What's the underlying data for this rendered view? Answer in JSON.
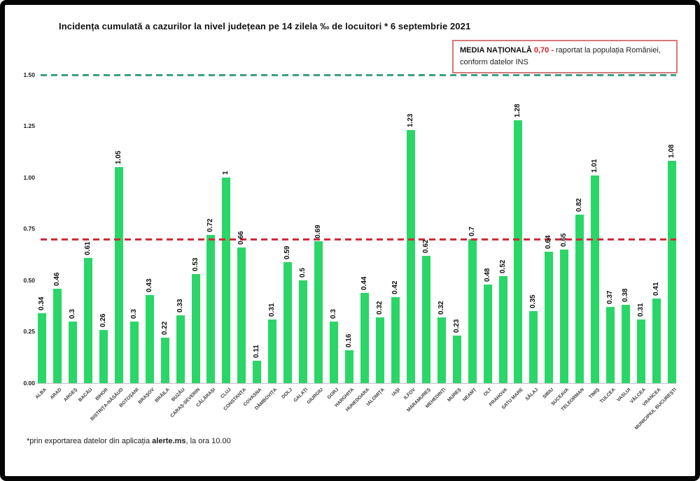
{
  "page": {
    "date_shown": "6 septembrie 2021"
  },
  "legend": {
    "label": "MEDIA NAȚIONALĂ",
    "value": "0,70 -",
    "text": "raportat la populația României,",
    "line2": "conform datelor INS",
    "border_color": "#D4797B",
    "value_color": "#E01A22"
  },
  "footer": {
    "prefix": "*prin exportarea datelor din aplicația ",
    "app": "alerte.ms",
    "suffix": ", la ora 10.00"
  },
  "chart_data": {
    "type": "bar",
    "title": "Incidența cumulată a cazurilor la nivel județean pe 14 zilela ‰ de locuitori * 6 septembrie 2021",
    "xlabel": "",
    "ylabel": "",
    "ylim": [
      0,
      1.5
    ],
    "yticks": [
      "0.00",
      "0.25",
      "0.50",
      "0.75",
      "1.00",
      "1.25",
      "1.50"
    ],
    "grid": false,
    "legend_position": "top-right",
    "bar_color": "#2BD668",
    "categories": [
      "ALBA",
      "ARAD",
      "ARGEȘ",
      "BACĂU",
      "BIHOR",
      "BISTRIȚA-NĂSĂUD",
      "BOTOȘANI",
      "BRAȘOV",
      "BRĂILA",
      "BUZĂU",
      "CARAȘ-SEVERIN",
      "CĂLĂRAȘI",
      "CLUJ",
      "CONSTANȚA",
      "COVASNA",
      "DÂMBOVIȚA",
      "DOLJ",
      "GALAȚI",
      "GIURGIU",
      "GORJ",
      "HARGHITA",
      "HUNEDOARA",
      "IALOMIȚA",
      "IAȘI",
      "ILFOV",
      "MARAMUREȘ",
      "MEHEDINȚI",
      "MUREȘ",
      "NEAMȚ",
      "OLT",
      "PRAHOVA",
      "SATU MARE",
      "SĂLAJ",
      "SIBIU",
      "SUCEAVA",
      "TELEORMAN",
      "TIMIȘ",
      "TULCEA",
      "VASLUI",
      "VÂLCEA",
      "VRANCEA",
      "MUNICIPIUL BUCUREȘTI"
    ],
    "values": [
      0.34,
      0.46,
      0.3,
      0.61,
      0.26,
      1.05,
      0.3,
      0.43,
      0.22,
      0.33,
      0.53,
      0.72,
      1,
      0.66,
      0.11,
      0.31,
      0.59,
      0.5,
      0.69,
      0.3,
      0.16,
      0.44,
      0.32,
      0.42,
      1.23,
      0.62,
      0.32,
      0.23,
      0.7,
      0.48,
      0.52,
      1.28,
      0.35,
      0.64,
      0.65,
      0.82,
      1.01,
      0.37,
      0.38,
      0.31,
      0.41,
      1.08
    ],
    "value_labels": [
      "0.34",
      "0.46",
      "0.3",
      "0.61",
      "0.26",
      "1.05",
      "0.3",
      "0.43",
      "0.22",
      "0.33",
      "0.53",
      "0.72",
      "1",
      "0.66",
      "0.11",
      "0.31",
      "0.59",
      "0.5",
      "0.69",
      "0.3",
      "0.16",
      "0.44",
      "0.32",
      "0.42",
      "1.23",
      "0.62",
      "0.32",
      "0.23",
      "0.7",
      "0.48",
      "0.52",
      "1.28",
      "0.35",
      "0.64",
      "0.65",
      "0.82",
      "1.01",
      "0.37",
      "0.38",
      "0.31",
      "0.41",
      "1.08"
    ],
    "reference_lines": [
      {
        "name": "top-teal-dashed",
        "value": 1.5,
        "color": "#3AA183"
      },
      {
        "name": "national-average",
        "value": 0.7,
        "color": "#CE2B3B"
      }
    ]
  }
}
